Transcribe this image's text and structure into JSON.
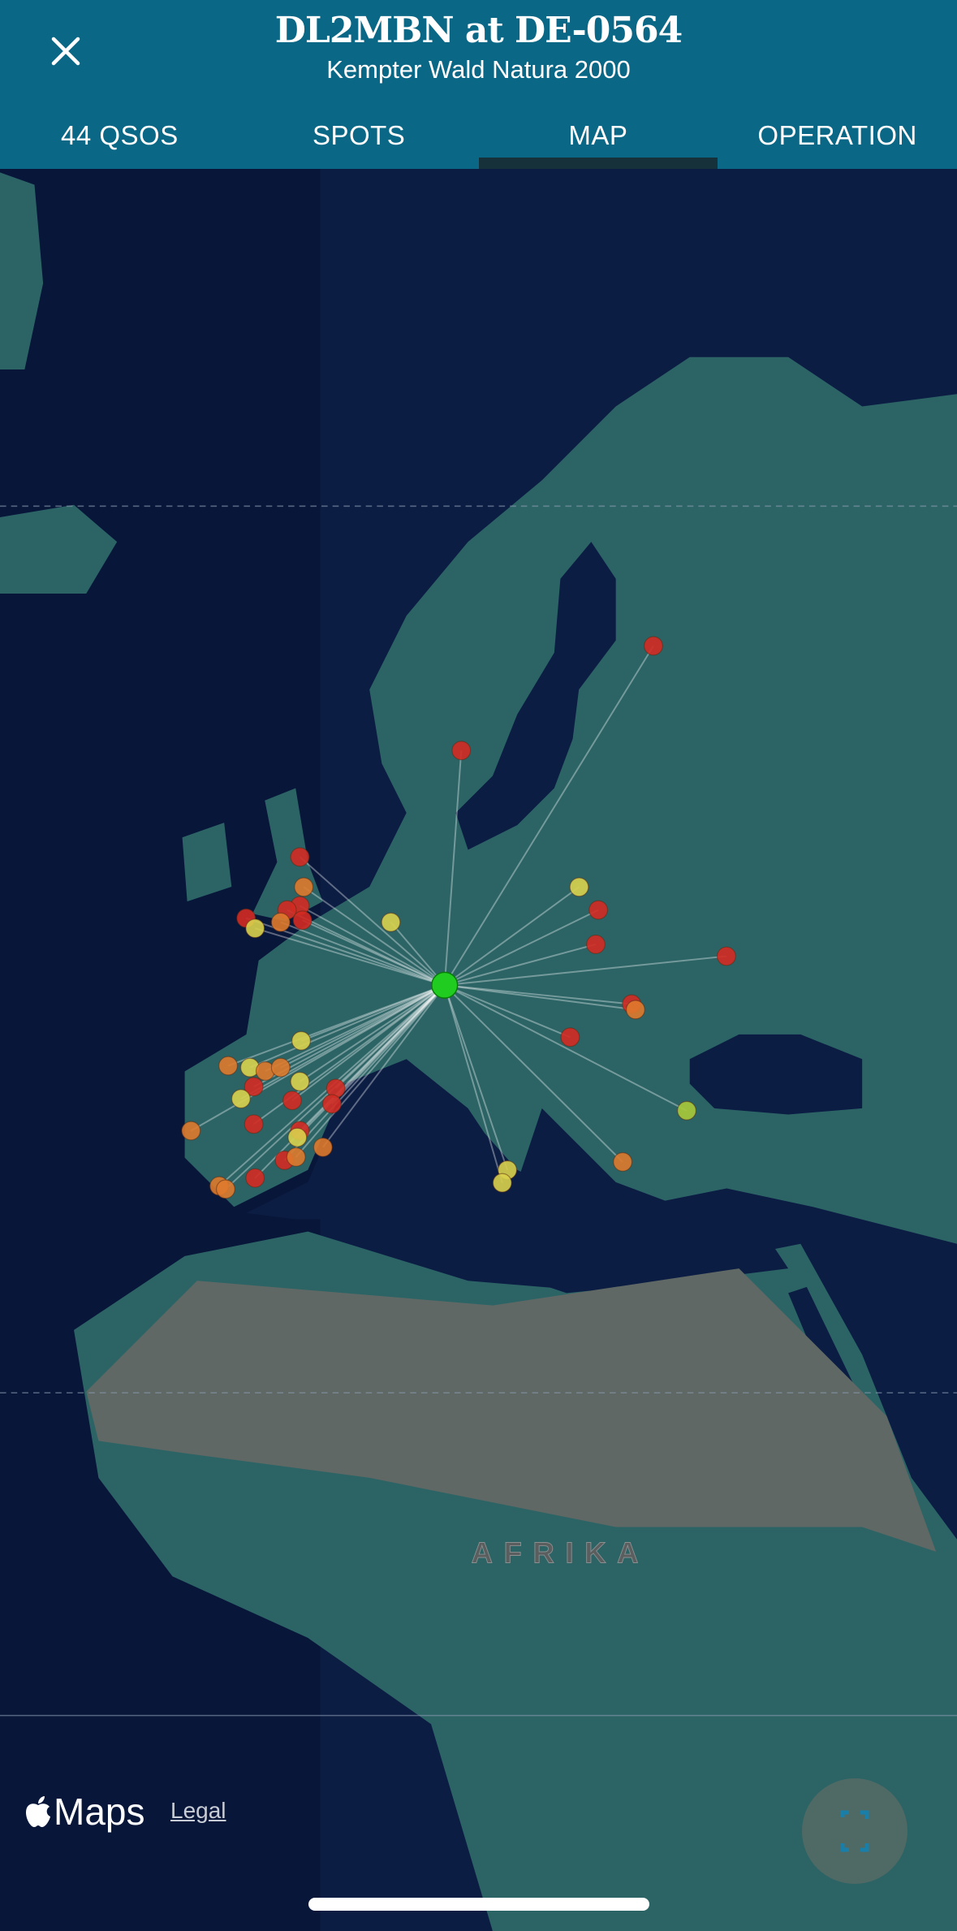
{
  "header": {
    "title": "DL2MBN at DE-0564",
    "subtitle": "Kempter Wald Natura 2000",
    "close_icon": "close-icon"
  },
  "tabs": [
    {
      "label": "44 QSOS",
      "active": false
    },
    {
      "label": "SPOTS",
      "active": false
    },
    {
      "label": "MAP",
      "active": true
    },
    {
      "label": "OPERATION",
      "active": false
    }
  ],
  "map": {
    "continent_label": "AFRIKA",
    "attribution": "Maps",
    "legal_label": "Legal",
    "tracking_icon": "user-tracking-icon",
    "colors": {
      "home": "#1fcc1f",
      "red": "#d42a22",
      "orange": "#df7a2c",
      "yellow": "#d9d24c",
      "yellowgreen": "#a9c93a",
      "line": "#ffffff"
    },
    "home": {
      "lat": 47.7,
      "lon": 10.3
    },
    "contacts": [
      {
        "lat": 62.6,
        "lon": 26.6,
        "color": "red"
      },
      {
        "lat": 58.6,
        "lon": 11.6,
        "color": "red"
      },
      {
        "lat": 54.0,
        "lon": -1.0,
        "color": "red"
      },
      {
        "lat": 52.6,
        "lon": -0.7,
        "color": "orange"
      },
      {
        "lat": 51.7,
        "lon": -1.0,
        "color": "red"
      },
      {
        "lat": 51.5,
        "lon": -2.0,
        "color": "red"
      },
      {
        "lat": 51.0,
        "lon": -0.8,
        "color": "red"
      },
      {
        "lat": 51.1,
        "lon": -5.2,
        "color": "red"
      },
      {
        "lat": 50.6,
        "lon": -4.5,
        "color": "yellow"
      },
      {
        "lat": 50.9,
        "lon": -2.5,
        "color": "orange"
      },
      {
        "lat": 50.9,
        "lon": 6.1,
        "color": "yellow"
      },
      {
        "lat": 52.6,
        "lon": 20.8,
        "color": "yellow"
      },
      {
        "lat": 51.5,
        "lon": 22.3,
        "color": "red"
      },
      {
        "lat": 49.8,
        "lon": 22.1,
        "color": "red"
      },
      {
        "lat": 49.2,
        "lon": 32.3,
        "color": "red"
      },
      {
        "lat": 46.7,
        "lon": 24.9,
        "color": "red"
      },
      {
        "lat": 46.4,
        "lon": 25.2,
        "color": "orange"
      },
      {
        "lat": 44.9,
        "lon": 20.1,
        "color": "red"
      },
      {
        "lat": 40.7,
        "lon": 29.2,
        "color": "yellowgreen"
      },
      {
        "lat": 37.6,
        "lon": 24.2,
        "color": "orange"
      },
      {
        "lat": 37.1,
        "lon": 15.2,
        "color": "yellow"
      },
      {
        "lat": 36.3,
        "lon": 14.8,
        "color": "yellow"
      },
      {
        "lat": 44.7,
        "lon": -0.9,
        "color": "yellow"
      },
      {
        "lat": 43.3,
        "lon": -6.6,
        "color": "orange"
      },
      {
        "lat": 43.2,
        "lon": -4.9,
        "color": "yellow"
      },
      {
        "lat": 43.0,
        "lon": -3.7,
        "color": "orange"
      },
      {
        "lat": 43.2,
        "lon": -2.5,
        "color": "orange"
      },
      {
        "lat": 42.1,
        "lon": -4.6,
        "color": "red"
      },
      {
        "lat": 42.4,
        "lon": -1.0,
        "color": "yellow"
      },
      {
        "lat": 41.4,
        "lon": -5.6,
        "color": "yellow"
      },
      {
        "lat": 41.3,
        "lon": -1.6,
        "color": "red"
      },
      {
        "lat": 42.0,
        "lon": 1.8,
        "color": "red"
      },
      {
        "lat": 41.1,
        "lon": 1.5,
        "color": "red"
      },
      {
        "lat": 39.9,
        "lon": -4.6,
        "color": "red"
      },
      {
        "lat": 39.5,
        "lon": -9.5,
        "color": "orange"
      },
      {
        "lat": 39.5,
        "lon": -1.0,
        "color": "red"
      },
      {
        "lat": 39.1,
        "lon": -1.2,
        "color": "yellow"
      },
      {
        "lat": 38.5,
        "lon": 0.8,
        "color": "orange"
      },
      {
        "lat": 37.7,
        "lon": -2.2,
        "color": "red"
      },
      {
        "lat": 37.9,
        "lon": -1.3,
        "color": "orange"
      },
      {
        "lat": 36.1,
        "lon": -7.3,
        "color": "orange"
      },
      {
        "lat": 35.9,
        "lon": -6.8,
        "color": "orange"
      },
      {
        "lat": 36.6,
        "lon": -4.5,
        "color": "red"
      }
    ]
  }
}
